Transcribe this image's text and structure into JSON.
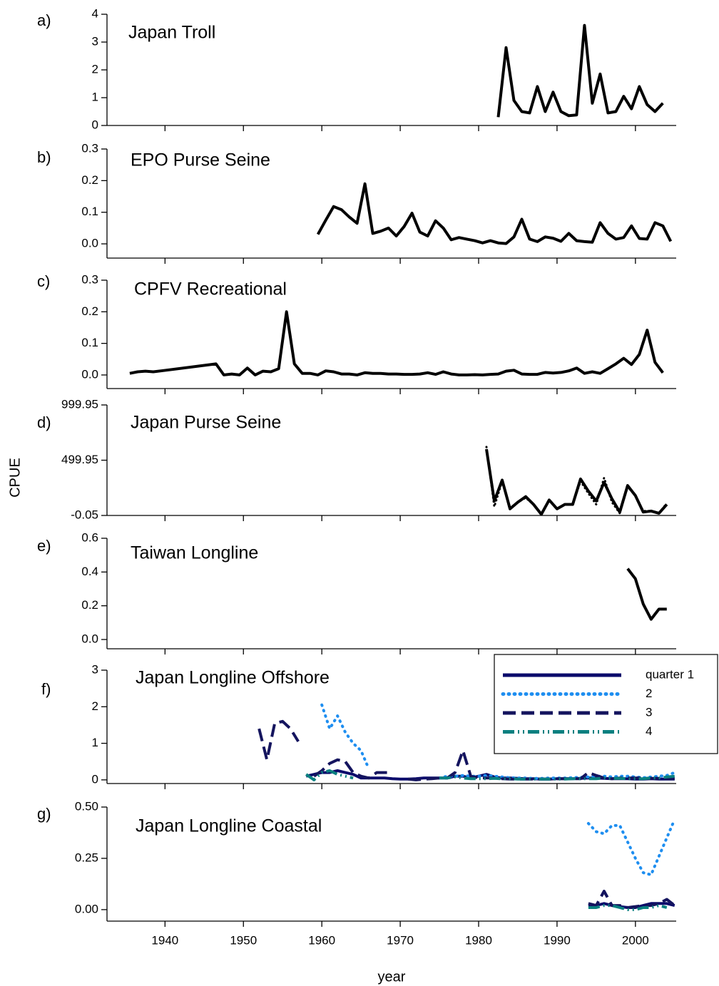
{
  "ylabel": "CPUE",
  "chart_data": [
    {
      "type": "line",
      "label": "a)",
      "title": "Japan Troll",
      "x": [
        1982.5,
        1983.5,
        1984.5,
        1985.5,
        1986.5,
        1987.5,
        1988.5,
        1989.5,
        1990.5,
        1991.5,
        1992.5,
        1993.5,
        1994.5,
        1995.5,
        1996.5,
        1997.5,
        1998.5,
        1999.5,
        2000.5,
        2001.5,
        2002.5,
        2003.5
      ],
      "values": [
        0.3,
        2.8,
        0.9,
        0.5,
        0.45,
        1.4,
        0.5,
        1.2,
        0.5,
        0.35,
        0.38,
        3.6,
        0.8,
        1.85,
        0.45,
        0.5,
        1.05,
        0.6,
        1.4,
        0.75,
        0.5,
        0.8
      ],
      "color": "#000000",
      "xlim": [
        1932.6,
        2005.2
      ],
      "xticks": [
        1940,
        1950,
        1960,
        1970,
        1980,
        1990,
        2000
      ],
      "ylim": [
        0,
        4
      ],
      "yticks": [
        0,
        1,
        2,
        3,
        4
      ]
    },
    {
      "type": "line",
      "label": "b)",
      "title": "EPO Purse Seine",
      "x": [
        1959.5,
        1960.5,
        1961.5,
        1962.5,
        1963.5,
        1964.5,
        1965.5,
        1966.5,
        1967.5,
        1968.5,
        1969.5,
        1970.5,
        1971.5,
        1972.5,
        1973.5,
        1974.5,
        1975.5,
        1976.5,
        1977.5,
        1978.5,
        1979.5,
        1980.5,
        1981.5,
        1982.5,
        1983.5,
        1984.5,
        1985.5,
        1986.5,
        1987.5,
        1988.5,
        1989.5,
        1990.5,
        1991.5,
        1992.5,
        1993.5,
        1994.5,
        1995.5,
        1996.5,
        1997.5,
        1998.5,
        1999.5,
        2000.5,
        2001.5,
        2002.5,
        2003.5,
        2004.5
      ],
      "values": [
        0.03,
        0.075,
        0.118,
        0.108,
        0.085,
        0.065,
        0.19,
        0.033,
        0.04,
        0.05,
        0.025,
        0.055,
        0.097,
        0.037,
        0.025,
        0.073,
        0.05,
        0.013,
        0.02,
        0.015,
        0.01,
        0.003,
        0.01,
        0.003,
        0.001,
        0.022,
        0.078,
        0.015,
        0.007,
        0.022,
        0.018,
        0.008,
        0.033,
        0.01,
        0.007,
        0.005,
        0.067,
        0.033,
        0.015,
        0.02,
        0.057,
        0.017,
        0.015,
        0.067,
        0.057,
        0.008
      ],
      "color": "#000000",
      "xlim": [
        1932.6,
        2005.2
      ],
      "xticks": [
        1940,
        1950,
        1960,
        1970,
        1980,
        1990,
        2000
      ],
      "ylim": [
        -0.045,
        0.3
      ],
      "yticks": [
        {
          "value": 0,
          "label": "0.0"
        },
        0.1,
        0.2,
        0.3
      ]
    },
    {
      "type": "line",
      "label": "c)",
      "title": "CPFV Recreational",
      "x": [
        1935.5,
        1936.5,
        1937.5,
        1938.5,
        1939.5,
        1946.5,
        1947.5,
        1948.5,
        1949.5,
        1950.5,
        1951.5,
        1952.5,
        1953.5,
        1954.5,
        1955.5,
        1956.5,
        1957.5,
        1958.5,
        1959.5,
        1960.5,
        1961.5,
        1962.5,
        1963.5,
        1964.5,
        1965.5,
        1966.5,
        1967.5,
        1968.5,
        1969.5,
        1970.5,
        1971.5,
        1972.5,
        1973.5,
        1974.5,
        1975.5,
        1976.5,
        1977.5,
        1978.5,
        1979.5,
        1980.5,
        1981.5,
        1982.5,
        1983.5,
        1984.5,
        1985.5,
        1986.5,
        1987.5,
        1988.5,
        1989.5,
        1990.5,
        1991.5,
        1992.5,
        1993.5,
        1994.5,
        1995.5,
        1996.5,
        1997.5,
        1998.5,
        1999.5,
        2000.5,
        2001.5,
        2002.5,
        2003.5
      ],
      "values": [
        0.005,
        0.01,
        0.012,
        0.01,
        0.013,
        0.035,
        0.0,
        0.003,
        0.0,
        0.022,
        0.0,
        0.012,
        0.01,
        0.02,
        0.2,
        0.035,
        0.005,
        0.005,
        0.0,
        0.013,
        0.01,
        0.003,
        0.003,
        0.0,
        0.007,
        0.005,
        0.005,
        0.003,
        0.003,
        0.002,
        0.002,
        0.003,
        0.007,
        0.002,
        0.01,
        0.003,
        0.0,
        0.0,
        0.001,
        0.0,
        0.002,
        0.003,
        0.012,
        0.015,
        0.003,
        0.002,
        0.002,
        0.008,
        0.006,
        0.008,
        0.013,
        0.022,
        0.005,
        0.01,
        0.005,
        0.02,
        0.035,
        0.053,
        0.033,
        0.065,
        0.142,
        0.04,
        0.007
      ],
      "color": "#000000",
      "xlim": [
        1932.6,
        2005.2
      ],
      "xticks": [
        1940,
        1950,
        1960,
        1970,
        1980,
        1990,
        2000
      ],
      "ylim": [
        -0.043,
        0.3
      ],
      "yticks": [
        {
          "value": 0,
          "label": "0.0"
        },
        0.1,
        0.2,
        0.3
      ]
    },
    {
      "type": "line",
      "label": "d)",
      "title": "Japan Purse Seine",
      "x": [
        1981,
        1982,
        1983,
        1984,
        1985,
        1986,
        1987,
        1988,
        1989,
        1990,
        1991,
        1992,
        1993,
        1994,
        1995,
        1996,
        1997,
        1998,
        1999,
        2000,
        2001,
        2002,
        2003,
        2004
      ],
      "series": [
        {
          "color": "#000000",
          "style": "solid",
          "values": [
            600,
            130,
            320,
            60,
            120,
            170,
            100,
            10,
            140,
            60,
            100,
            100,
            330,
            220,
            130,
            300,
            150,
            30,
            270,
            180,
            30,
            40,
            20,
            100
          ]
        },
        {
          "color": "#000000",
          "style": "dotted",
          "values": [
            620,
            80,
            310,
            60,
            120,
            160,
            100,
            10,
            140,
            60,
            100,
            100,
            310,
            200,
            100,
            340,
            120,
            20,
            260,
            180,
            40,
            40,
            20,
            110
          ]
        }
      ],
      "xlim": [
        1932.6,
        2005.2
      ],
      "xticks": [
        1940,
        1950,
        1960,
        1970,
        1980,
        1990,
        2000
      ],
      "ylim": [
        -0.05,
        999.95
      ],
      "yticks": [
        -0.05,
        499.95,
        999.95
      ]
    },
    {
      "type": "line",
      "label": "e)",
      "title": "Taiwan Longline",
      "x": [
        1999,
        2000,
        2001,
        2002,
        2003,
        2004
      ],
      "values": [
        0.42,
        0.36,
        0.21,
        0.12,
        0.18,
        0.18
      ],
      "color": "#000000",
      "xlim": [
        1932.6,
        2005.2
      ],
      "xticks": [
        1940,
        1950,
        1960,
        1970,
        1980,
        1990,
        2000
      ],
      "ylim": [
        -0.055,
        0.6
      ],
      "yticks": [
        {
          "value": 0,
          "label": "0.0"
        },
        0.2,
        0.4,
        0.6
      ]
    },
    {
      "type": "line",
      "label": "f)",
      "title": "Japan Longline Offshore",
      "x": [
        1952,
        1953,
        1954,
        1955,
        1956,
        1957,
        1958,
        1959,
        1960,
        1961,
        1962,
        1963,
        1964,
        1965,
        1966,
        1967,
        1968,
        1969,
        1970,
        1971,
        1972,
        1973,
        1974,
        1975,
        1976,
        1977,
        1978,
        1979,
        1980,
        1981,
        1982,
        1983,
        1984,
        1985,
        1986,
        1987,
        1988,
        1989,
        1990,
        1991,
        1992,
        1993,
        1994,
        1995,
        1996,
        1997,
        1998,
        1999,
        2000,
        2001,
        2002,
        2003,
        2004,
        2005
      ],
      "series": [
        {
          "name": "quarter 1",
          "color": "#0b0b6b",
          "style": "solid",
          "values": [
            null,
            null,
            null,
            null,
            null,
            null,
            0.1,
            0.15,
            0.2,
            0.2,
            0.25,
            0.2,
            0.15,
            0.05,
            0.05,
            0.05,
            0.05,
            0.03,
            0.02,
            0.02,
            0.03,
            0.05,
            0.05,
            0.05,
            0.05,
            0.1,
            0.1,
            0.05,
            0.1,
            0.15,
            0.08,
            0.05,
            0.05,
            0.04,
            0.03,
            0.03,
            0.02,
            0.02,
            0.03,
            0.03,
            0.03,
            0.04,
            0.05,
            0.05,
            0.04,
            0.03,
            0.03,
            0.03,
            0.02,
            0.02,
            0.03,
            0.02,
            0.02,
            0.02
          ]
        },
        {
          "name": "2",
          "color": "#1e8ef0",
          "style": "dotted",
          "values": [
            null,
            null,
            null,
            null,
            null,
            null,
            null,
            null,
            2.05,
            1.4,
            1.75,
            1.3,
            1.0,
            0.8,
            0.3,
            null,
            null,
            null,
            null,
            null,
            null,
            null,
            null,
            0.05,
            0.1,
            0.1,
            0.12,
            0.1,
            0.1,
            0.12,
            0.1,
            0.08,
            0.06,
            0.05,
            0.05,
            0.04,
            0.04,
            0.05,
            0.05,
            0.05,
            0.06,
            0.07,
            0.08,
            0.1,
            0.1,
            0.08,
            0.1,
            0.1,
            0.08,
            0.06,
            0.08,
            0.1,
            0.12,
            0.2
          ]
        },
        {
          "name": "3",
          "color": "#14145e",
          "style": "dashed",
          "values": [
            1.4,
            0.55,
            1.55,
            1.6,
            1.4,
            1.05,
            null,
            0.1,
            0.25,
            0.45,
            0.55,
            0.5,
            0.2,
            0.1,
            0.05,
            0.2,
            0.2,
            0.2,
            null,
            0.02,
            0.0,
            0.02,
            0.03,
            0.05,
            0.05,
            0.2,
            0.8,
            0.1,
            0.05,
            0.05,
            0.05,
            0.03,
            0.02,
            0.02,
            0.02,
            0.02,
            0.02,
            0.02,
            0.03,
            0.03,
            0.03,
            0.03,
            0.2,
            0.12,
            0.05,
            0.03,
            0.05,
            0.05,
            0.05,
            0.05,
            0.04,
            0.04,
            0.03,
            0.03
          ]
        },
        {
          "name": "4",
          "color": "#0a8080",
          "style": "dashdot",
          "values": [
            null,
            null,
            null,
            null,
            null,
            null,
            0.15,
            0.0,
            0.2,
            0.25,
            0.15,
            0.1,
            0.05,
            null,
            null,
            null,
            null,
            null,
            null,
            null,
            null,
            null,
            null,
            0.05,
            0.05,
            0.08,
            0.05,
            0.03,
            0.03,
            0.03,
            0.04,
            0.03,
            0.03,
            0.02,
            0.02,
            0.02,
            0.02,
            0.02,
            0.02,
            0.02,
            0.03,
            0.03,
            0.03,
            0.03,
            0.05,
            0.04,
            0.04,
            0.03,
            0.03,
            0.03,
            0.05,
            0.05,
            0.08,
            0.1
          ]
        }
      ],
      "legend": "upper right",
      "xlim": [
        1932.6,
        2005.2
      ],
      "xticks": [
        1940,
        1950,
        1960,
        1970,
        1980,
        1990,
        2000
      ],
      "ylim": [
        -0.1,
        3
      ],
      "yticks": [
        0,
        1,
        2,
        3
      ]
    },
    {
      "type": "line",
      "label": "g)",
      "title": "Japan Longline Coastal",
      "xlabel": "year",
      "x": [
        1994,
        1995,
        1996,
        1997,
        1998,
        1999,
        2000,
        2001,
        2002,
        2003,
        2004,
        2005
      ],
      "series": [
        {
          "color": "#0b0b6b",
          "style": "solid",
          "values": [
            0.02,
            0.02,
            0.03,
            0.02,
            0.015,
            0.01,
            0.01,
            0.02,
            0.03,
            0.03,
            0.03,
            0.02
          ]
        },
        {
          "color": "#1e8ef0",
          "style": "dotted",
          "values": [
            0.42,
            0.38,
            0.37,
            0.41,
            0.41,
            0.33,
            0.25,
            0.18,
            0.17,
            0.26,
            0.35,
            0.44
          ]
        },
        {
          "color": "#14145e",
          "style": "dashed",
          "values": [
            0.03,
            0.02,
            0.09,
            0.02,
            0.02,
            0.01,
            0.015,
            0.02,
            0.02,
            0.03,
            0.05,
            0.02
          ]
        },
        {
          "color": "#0a8080",
          "style": "dashdot",
          "values": [
            0.01,
            0.01,
            0.02,
            0.02,
            0.01,
            0.0,
            0.0,
            0.01,
            0.01,
            0.02,
            0.01,
            null
          ]
        }
      ],
      "xlim": [
        1932.6,
        2005.2
      ],
      "xticks": [
        1940,
        1950,
        1960,
        1970,
        1980,
        1990,
        2000
      ],
      "ylim": [
        -0.056,
        0.5
      ],
      "yticks": [
        {
          "value": 0,
          "label": "0.00"
        },
        {
          "value": 0.25,
          "label": "0.25"
        },
        {
          "value": 0.5,
          "label": "0.50"
        }
      ]
    }
  ]
}
